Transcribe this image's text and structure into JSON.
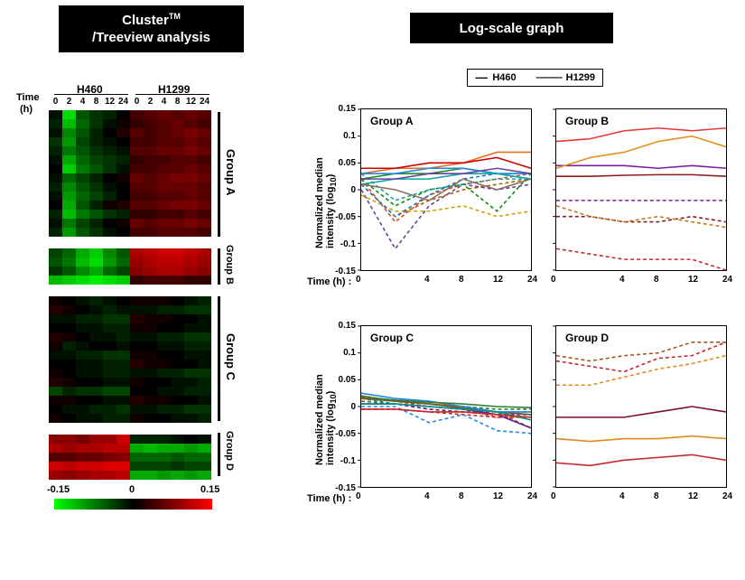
{
  "headers": {
    "left": "Cluster™\n/Treeview analysis",
    "right": "Log-scale graph"
  },
  "heatmap": {
    "timeLabel": "Time",
    "timeUnit": "(h)",
    "top_left": "H460",
    "top_right": "H1299",
    "timepoints": [
      "0",
      "2",
      "4",
      "8",
      "12",
      "24",
      "0",
      "2",
      "4",
      "8",
      "12",
      "24"
    ],
    "groups": [
      {
        "name": "Group A",
        "rows": 14
      },
      {
        "name": "Group B",
        "rows": 4
      },
      {
        "name": "Group C",
        "rows": 14
      },
      {
        "name": "Group D",
        "rows": 5
      }
    ],
    "blockA": {
      "rows": 14,
      "cols": 12,
      "data": [
        [
          -0.01,
          -0.13,
          -0.05,
          -0.03,
          -0.02,
          0.0,
          0.04,
          0.05,
          0.06,
          0.05,
          0.06,
          0.05
        ],
        [
          -0.02,
          -0.11,
          -0.06,
          -0.03,
          -0.01,
          0.01,
          0.03,
          0.04,
          0.05,
          0.06,
          0.05,
          0.04
        ],
        [
          -0.01,
          -0.08,
          -0.05,
          -0.02,
          0.0,
          0.02,
          0.05,
          0.04,
          0.05,
          0.06,
          0.07,
          0.06
        ],
        [
          -0.03,
          -0.09,
          -0.04,
          -0.02,
          -0.01,
          0.0,
          0.04,
          0.04,
          0.05,
          0.05,
          0.06,
          0.05
        ],
        [
          -0.02,
          -0.07,
          -0.05,
          -0.03,
          -0.02,
          -0.01,
          0.05,
          0.05,
          0.06,
          0.06,
          0.07,
          0.06
        ],
        [
          -0.01,
          -0.1,
          -0.06,
          -0.04,
          -0.03,
          -0.02,
          0.03,
          0.04,
          0.04,
          0.05,
          0.05,
          0.04
        ],
        [
          0.0,
          -0.12,
          -0.07,
          -0.05,
          -0.03,
          -0.01,
          0.04,
          0.04,
          0.05,
          0.05,
          0.06,
          0.05
        ],
        [
          -0.01,
          -0.06,
          -0.04,
          -0.02,
          0.0,
          0.01,
          0.06,
          0.05,
          0.06,
          0.07,
          0.07,
          0.06
        ],
        [
          -0.02,
          -0.08,
          -0.05,
          -0.03,
          -0.01,
          0.0,
          0.05,
          0.05,
          0.06,
          0.06,
          0.06,
          0.05
        ],
        [
          -0.01,
          -0.09,
          -0.06,
          -0.04,
          -0.02,
          0.0,
          0.04,
          0.04,
          0.05,
          0.05,
          0.06,
          0.05
        ],
        [
          0.0,
          -0.1,
          -0.05,
          -0.02,
          0.01,
          0.02,
          0.05,
          0.05,
          0.06,
          0.07,
          0.07,
          0.06
        ],
        [
          -0.02,
          -0.11,
          -0.07,
          -0.05,
          -0.03,
          -0.02,
          0.03,
          0.03,
          0.04,
          0.04,
          0.05,
          0.04
        ],
        [
          -0.01,
          -0.07,
          -0.04,
          -0.02,
          0.0,
          0.01,
          0.06,
          0.05,
          0.06,
          0.06,
          0.07,
          0.06
        ],
        [
          -0.02,
          -0.09,
          -0.05,
          -0.03,
          -0.01,
          0.0,
          0.04,
          0.04,
          0.05,
          0.05,
          0.05,
          0.04
        ]
      ]
    },
    "blockB": {
      "rows": 4,
      "cols": 12,
      "data": [
        [
          -0.04,
          -0.06,
          -0.1,
          -0.12,
          -0.08,
          -0.05,
          0.1,
          0.11,
          0.12,
          0.12,
          0.11,
          0.1
        ],
        [
          -0.05,
          -0.07,
          -0.11,
          -0.13,
          -0.09,
          -0.06,
          0.09,
          0.1,
          0.11,
          0.11,
          0.1,
          0.09
        ],
        [
          -0.03,
          -0.05,
          -0.08,
          -0.1,
          -0.06,
          -0.04,
          0.08,
          0.09,
          0.1,
          0.1,
          0.09,
          0.08
        ],
        [
          -0.11,
          -0.12,
          -0.13,
          -0.14,
          -0.13,
          -0.12,
          0.03,
          0.04,
          0.04,
          0.04,
          0.03,
          0.03
        ]
      ]
    },
    "blockC": {
      "rows": 14,
      "cols": 12,
      "data": [
        [
          0.01,
          0.0,
          -0.01,
          -0.02,
          -0.01,
          0.0,
          0.01,
          0.01,
          0.01,
          0.0,
          -0.01,
          -0.02
        ],
        [
          0.02,
          0.01,
          0.0,
          -0.01,
          -0.02,
          -0.01,
          -0.01,
          -0.01,
          -0.02,
          -0.02,
          -0.03,
          -0.03
        ],
        [
          -0.01,
          -0.01,
          -0.02,
          -0.02,
          -0.03,
          -0.03,
          0.02,
          0.01,
          0.01,
          0.0,
          0.0,
          -0.01
        ],
        [
          0.0,
          0.0,
          -0.01,
          -0.01,
          -0.02,
          -0.02,
          0.01,
          0.01,
          0.0,
          0.0,
          -0.01,
          -0.01
        ],
        [
          0.02,
          0.01,
          0.0,
          -0.01,
          -0.01,
          -0.02,
          -0.01,
          -0.01,
          -0.02,
          -0.02,
          -0.03,
          -0.03
        ],
        [
          0.01,
          -0.02,
          -0.01,
          0.0,
          0.0,
          -0.01,
          0.0,
          0.0,
          -0.01,
          -0.01,
          -0.02,
          -0.02
        ],
        [
          -0.01,
          -0.01,
          -0.02,
          -0.02,
          -0.03,
          -0.03,
          0.01,
          0.01,
          0.0,
          0.0,
          -0.01,
          -0.01
        ],
        [
          0.0,
          0.0,
          -0.01,
          -0.01,
          -0.02,
          -0.02,
          0.02,
          0.01,
          0.01,
          0.0,
          0.0,
          -0.01
        ],
        [
          0.01,
          0.0,
          -0.01,
          -0.01,
          -0.02,
          -0.02,
          -0.01,
          -0.01,
          -0.02,
          -0.02,
          -0.03,
          -0.03
        ],
        [
          0.02,
          0.01,
          0.0,
          0.0,
          -0.01,
          -0.01,
          0.01,
          0.0,
          0.0,
          -0.01,
          -0.01,
          -0.02
        ],
        [
          -0.04,
          -0.02,
          -0.03,
          -0.03,
          -0.04,
          -0.04,
          0.0,
          0.0,
          -0.01,
          -0.01,
          -0.02,
          -0.02
        ],
        [
          0.01,
          0.01,
          0.0,
          0.0,
          -0.01,
          -0.01,
          0.02,
          0.01,
          0.01,
          0.0,
          0.0,
          -0.01
        ],
        [
          0.0,
          -0.01,
          -0.01,
          -0.02,
          -0.02,
          -0.03,
          -0.01,
          -0.01,
          -0.02,
          -0.02,
          -0.03,
          -0.03
        ],
        [
          0.01,
          0.0,
          -0.01,
          -0.01,
          -0.02,
          -0.02,
          0.01,
          0.0,
          0.0,
          -0.01,
          -0.01,
          -0.02
        ]
      ]
    },
    "blockD": {
      "rows": 5,
      "cols": 12,
      "data": [
        [
          0.08,
          0.08,
          0.07,
          0.09,
          0.09,
          0.12,
          -0.02,
          -0.02,
          -0.02,
          -0.01,
          0.0,
          -0.01
        ],
        [
          0.1,
          0.09,
          0.1,
          0.1,
          0.11,
          0.11,
          -0.1,
          -0.11,
          -0.1,
          -0.1,
          -0.09,
          -0.1
        ],
        [
          0.05,
          0.05,
          0.06,
          0.06,
          0.07,
          0.08,
          -0.06,
          -0.06,
          -0.06,
          -0.05,
          -0.06,
          -0.06
        ],
        [
          0.12,
          0.11,
          0.12,
          0.12,
          0.13,
          0.13,
          -0.04,
          -0.04,
          -0.04,
          -0.03,
          -0.04,
          -0.04
        ],
        [
          0.09,
          0.08,
          0.09,
          0.1,
          0.1,
          0.11,
          -0.1,
          -0.1,
          -0.09,
          -0.1,
          -0.09,
          -0.1
        ]
      ]
    },
    "colorscale": {
      "min": -0.15,
      "mid": 0,
      "max": 0.15,
      "color_low": "#00ff00",
      "color_mid": "#000000",
      "color_high": "#ff0000"
    }
  },
  "legend": {
    "dashed": "H460",
    "solid": "H1299",
    "dashed_label_prefix": "-----",
    "solid_label_prefix": "——"
  },
  "charts": {
    "x": [
      0,
      1,
      2,
      3,
      4,
      5
    ],
    "xticks": [
      "0",
      "",
      "4",
      "8",
      "12",
      "24"
    ],
    "yticks": [
      "-0.15",
      "-0.1",
      "-0.05",
      "0",
      "0.05",
      "0.1",
      "0.15"
    ],
    "ylim": [
      -0.15,
      0.15
    ],
    "ylabel": "Normalized median\nintensity (log₁₀)",
    "xlabel": "Time (h) :",
    "groups": {
      "A": {
        "title": "Group A",
        "series": [
          {
            "d": true,
            "c": "#d9481d",
            "y": [
              0.02,
              -0.06,
              -0.01,
              0.01,
              0.02,
              0.03
            ]
          },
          {
            "d": true,
            "c": "#b15c00",
            "y": [
              0.01,
              -0.05,
              -0.02,
              0.0,
              0.01,
              0.02
            ]
          },
          {
            "d": true,
            "c": "#6b3fa0",
            "y": [
              0.0,
              -0.11,
              -0.03,
              0.01,
              0.0,
              0.01
            ]
          },
          {
            "d": true,
            "c": "#0a8a0a",
            "y": [
              0.02,
              -0.03,
              0.0,
              0.01,
              -0.04,
              0.03
            ]
          },
          {
            "d": true,
            "c": "#c9a200",
            "y": [
              -0.01,
              -0.04,
              -0.04,
              -0.03,
              -0.05,
              -0.04
            ]
          },
          {
            "d": true,
            "c": "#1976c4",
            "y": [
              0.01,
              -0.05,
              -0.01,
              0.02,
              0.03,
              0.02
            ]
          },
          {
            "d": true,
            "c": "#15a0a0",
            "y": [
              0.03,
              -0.02,
              0.0,
              0.01,
              0.02,
              0.02
            ]
          },
          {
            "d": false,
            "c": "#e2711d",
            "y": [
              0.03,
              0.04,
              0.04,
              0.05,
              0.07,
              0.07
            ]
          },
          {
            "d": false,
            "c": "#cc0000",
            "y": [
              0.04,
              0.04,
              0.05,
              0.05,
              0.06,
              0.04
            ]
          },
          {
            "d": false,
            "c": "#1a8f1a",
            "y": [
              0.02,
              0.03,
              0.03,
              0.04,
              0.03,
              0.03
            ]
          },
          {
            "d": false,
            "c": "#1e88e5",
            "y": [
              0.03,
              0.03,
              0.04,
              0.04,
              0.03,
              0.03
            ]
          },
          {
            "d": false,
            "c": "#0aa7a7",
            "y": [
              0.01,
              0.02,
              0.02,
              0.03,
              0.03,
              0.02
            ]
          },
          {
            "d": false,
            "c": "#6b3fa0",
            "y": [
              0.02,
              0.02,
              0.03,
              0.03,
              0.04,
              0.03
            ]
          },
          {
            "d": false,
            "c": "#8d6e63",
            "y": [
              0.01,
              0.0,
              -0.02,
              0.02,
              0.0,
              0.02
            ]
          }
        ]
      },
      "B": {
        "title": "Group B",
        "series": [
          {
            "d": true,
            "c": "#7b1fa2",
            "y": [
              -0.02,
              -0.02,
              -0.02,
              -0.02,
              -0.02,
              -0.02
            ]
          },
          {
            "d": true,
            "c": "#8a1c1c",
            "y": [
              -0.05,
              -0.05,
              -0.06,
              -0.06,
              -0.05,
              -0.06
            ]
          },
          {
            "d": true,
            "c": "#c2781d",
            "y": [
              -0.03,
              -0.05,
              -0.06,
              -0.05,
              -0.06,
              -0.07
            ]
          },
          {
            "d": true,
            "c": "#c62828",
            "y": [
              -0.11,
              -0.12,
              -0.13,
              -0.13,
              -0.13,
              -0.15
            ]
          },
          {
            "d": false,
            "c": "#7b1fa2",
            "y": [
              0.045,
              0.045,
              0.045,
              0.04,
              0.045,
              0.04
            ]
          },
          {
            "d": false,
            "c": "#8a1c1c",
            "y": [
              0.025,
              0.025,
              0.027,
              0.028,
              0.028,
              0.025
            ]
          },
          {
            "d": false,
            "c": "#e28f1d",
            "y": [
              0.04,
              0.06,
              0.07,
              0.09,
              0.1,
              0.08
            ]
          },
          {
            "d": false,
            "c": "#e53935",
            "y": [
              0.09,
              0.095,
              0.11,
              0.115,
              0.11,
              0.115
            ]
          }
        ]
      },
      "C": {
        "title": "Group C",
        "series": [
          {
            "d": true,
            "c": "#d84315",
            "y": [
              0.018,
              0.01,
              0.0,
              -0.005,
              -0.02,
              -0.02
            ]
          },
          {
            "d": true,
            "c": "#7b5c2a",
            "y": [
              0.01,
              0.005,
              -0.005,
              -0.01,
              -0.01,
              -0.04
            ]
          },
          {
            "d": true,
            "c": "#6a1b9a",
            "y": [
              0.005,
              0.005,
              -0.005,
              -0.01,
              -0.015,
              -0.015
            ]
          },
          {
            "d": true,
            "c": "#1e88e5",
            "y": [
              0.0,
              0.0,
              -0.03,
              -0.015,
              -0.045,
              -0.05
            ]
          },
          {
            "d": true,
            "c": "#009688",
            "y": [
              0.015,
              0.005,
              0.0,
              -0.005,
              -0.01,
              -0.01
            ]
          },
          {
            "d": true,
            "c": "#c62828",
            "y": [
              -0.005,
              -0.005,
              -0.01,
              -0.015,
              -0.02,
              -0.02
            ]
          },
          {
            "d": true,
            "c": "#2e7d32",
            "y": [
              0.02,
              0.01,
              0.005,
              0.0,
              -0.005,
              -0.005
            ]
          },
          {
            "d": false,
            "c": "#d84315",
            "y": [
              0.02,
              0.01,
              0.005,
              0.0,
              -0.01,
              -0.015
            ]
          },
          {
            "d": false,
            "c": "#6a5c2a",
            "y": [
              0.015,
              0.01,
              0.005,
              -0.003,
              -0.01,
              -0.015
            ]
          },
          {
            "d": false,
            "c": "#6a1b9a",
            "y": [
              0.005,
              0.005,
              0.0,
              -0.005,
              -0.015,
              -0.04
            ]
          },
          {
            "d": false,
            "c": "#1e88e5",
            "y": [
              0.025,
              0.015,
              0.01,
              0.0,
              -0.01,
              -0.01
            ]
          },
          {
            "d": false,
            "c": "#009688",
            "y": [
              0.005,
              0.005,
              0.0,
              -0.005,
              -0.01,
              -0.025
            ]
          },
          {
            "d": false,
            "c": "#c62828",
            "y": [
              -0.005,
              -0.005,
              -0.01,
              -0.01,
              -0.015,
              -0.02
            ]
          },
          {
            "d": false,
            "c": "#2e7d32",
            "y": [
              0.018,
              0.012,
              0.008,
              0.005,
              0.0,
              -0.002
            ]
          }
        ]
      },
      "D": {
        "title": "Group D",
        "series": [
          {
            "d": true,
            "c": "#9c5a1c",
            "y": [
              0.095,
              0.085,
              0.095,
              0.1,
              0.12,
              0.12
            ]
          },
          {
            "d": true,
            "c": "#c62828",
            "y": [
              0.085,
              0.075,
              0.065,
              0.09,
              0.095,
              0.12
            ]
          },
          {
            "d": true,
            "c": "#e2871d",
            "y": [
              0.04,
              0.04,
              0.055,
              0.07,
              0.08,
              0.095
            ]
          },
          {
            "d": false,
            "c": "#7a1030",
            "y": [
              -0.02,
              -0.02,
              -0.02,
              -0.01,
              0.0,
              -0.01
            ]
          },
          {
            "d": false,
            "c": "#e2871d",
            "y": [
              -0.06,
              -0.065,
              -0.06,
              -0.06,
              -0.055,
              -0.06
            ]
          },
          {
            "d": false,
            "c": "#c62828",
            "y": [
              -0.105,
              -0.11,
              -0.1,
              -0.095,
              -0.09,
              -0.1
            ]
          }
        ]
      }
    }
  }
}
